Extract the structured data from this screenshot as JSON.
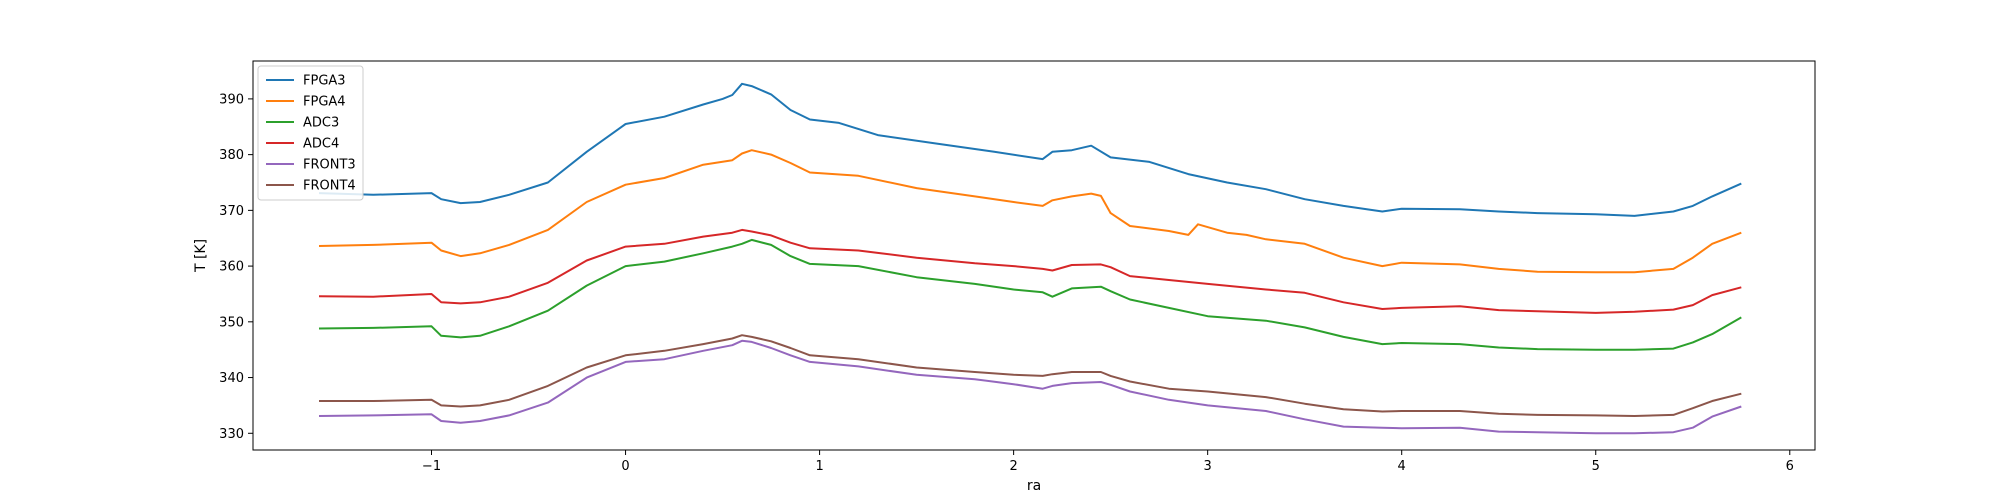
{
  "chart_data": {
    "type": "line",
    "xlabel": "ra",
    "ylabel": "T [K]",
    "xlim": [
      -1.92,
      6.13
    ],
    "ylim": [
      327.0,
      396.8
    ],
    "xticks": [
      -1,
      0,
      1,
      2,
      3,
      4,
      5,
      6
    ],
    "xtick_labels": [
      "−1",
      "0",
      "1",
      "2",
      "3",
      "4",
      "5",
      "6"
    ],
    "yticks": [
      330,
      340,
      350,
      360,
      370,
      380,
      390
    ],
    "ytick_labels": [
      "330",
      "340",
      "350",
      "360",
      "370",
      "380",
      "390"
    ],
    "grid": false,
    "legend_position": "upper-left",
    "series": [
      {
        "name": "FPGA3",
        "color": "#1f77b4",
        "x": [
          -1.58,
          -1.3,
          -1.0,
          -0.95,
          -0.85,
          -0.75,
          -0.6,
          -0.4,
          -0.2,
          0.0,
          0.2,
          0.4,
          0.5,
          0.55,
          0.6,
          0.65,
          0.75,
          0.85,
          0.95,
          1.1,
          1.3,
          1.6,
          1.9,
          2.15,
          2.2,
          2.3,
          2.4,
          2.5,
          2.7,
          2.9,
          3.1,
          3.3,
          3.5,
          3.7,
          3.9,
          4.0,
          4.3,
          4.5,
          4.7,
          5.0,
          5.2,
          5.4,
          5.5,
          5.6,
          5.75
        ],
        "y": [
          373.1,
          372.8,
          373.1,
          372.0,
          371.3,
          371.5,
          372.8,
          375.0,
          380.5,
          385.5,
          386.8,
          389.0,
          390.0,
          390.7,
          392.7,
          392.3,
          390.8,
          388.0,
          386.3,
          385.7,
          383.5,
          382.0,
          380.5,
          379.2,
          380.5,
          380.8,
          381.6,
          379.5,
          378.7,
          376.5,
          375.0,
          373.8,
          372.0,
          370.8,
          369.8,
          370.3,
          370.2,
          369.8,
          369.5,
          369.3,
          369.0,
          369.8,
          370.8,
          372.5,
          374.8
        ]
      },
      {
        "name": "FPGA4",
        "color": "#ff7f0e",
        "x": [
          -1.58,
          -1.3,
          -1.0,
          -0.95,
          -0.85,
          -0.75,
          -0.6,
          -0.4,
          -0.2,
          0.0,
          0.2,
          0.4,
          0.55,
          0.6,
          0.65,
          0.75,
          0.85,
          0.95,
          1.2,
          1.5,
          1.8,
          2.0,
          2.15,
          2.2,
          2.3,
          2.4,
          2.45,
          2.5,
          2.6,
          2.8,
          2.9,
          2.95,
          3.1,
          3.2,
          3.3,
          3.5,
          3.7,
          3.9,
          4.0,
          4.3,
          4.5,
          4.7,
          5.0,
          5.2,
          5.4,
          5.5,
          5.6,
          5.75
        ],
        "y": [
          363.6,
          363.8,
          364.2,
          362.8,
          361.8,
          362.3,
          363.8,
          366.5,
          371.5,
          374.6,
          375.8,
          378.2,
          379.0,
          380.2,
          380.8,
          380.0,
          378.5,
          376.8,
          376.2,
          374.0,
          372.5,
          371.5,
          370.8,
          371.8,
          372.5,
          373.0,
          372.6,
          369.5,
          367.2,
          366.3,
          365.6,
          367.5,
          366.0,
          365.6,
          364.8,
          364.0,
          361.5,
          360.0,
          360.6,
          360.3,
          359.5,
          359.0,
          358.9,
          358.9,
          359.5,
          361.5,
          364.0,
          366.0
        ]
      },
      {
        "name": "ADC3",
        "color": "#2ca02c",
        "x": [
          -1.58,
          -1.3,
          -1.0,
          -0.95,
          -0.85,
          -0.75,
          -0.6,
          -0.4,
          -0.2,
          0.0,
          0.2,
          0.4,
          0.55,
          0.6,
          0.65,
          0.75,
          0.85,
          0.95,
          1.2,
          1.5,
          1.8,
          2.0,
          2.15,
          2.2,
          2.3,
          2.45,
          2.5,
          2.6,
          2.8,
          3.0,
          3.3,
          3.5,
          3.7,
          3.9,
          4.0,
          4.3,
          4.5,
          4.7,
          5.0,
          5.2,
          5.4,
          5.5,
          5.6,
          5.75
        ],
        "y": [
          348.8,
          348.9,
          349.2,
          347.5,
          347.2,
          347.5,
          349.2,
          352.0,
          356.5,
          360.0,
          360.8,
          362.3,
          363.5,
          364.0,
          364.7,
          363.8,
          361.8,
          360.4,
          360.0,
          358.0,
          356.8,
          355.8,
          355.3,
          354.5,
          356.0,
          356.3,
          355.5,
          354.0,
          352.5,
          351.0,
          350.2,
          349.0,
          347.3,
          346.0,
          346.2,
          346.0,
          345.4,
          345.1,
          345.0,
          345.0,
          345.2,
          346.3,
          347.8,
          350.8
        ]
      },
      {
        "name": "ADC4",
        "color": "#d62728",
        "x": [
          -1.58,
          -1.3,
          -1.0,
          -0.95,
          -0.85,
          -0.75,
          -0.6,
          -0.4,
          -0.2,
          0.0,
          0.2,
          0.4,
          0.55,
          0.6,
          0.65,
          0.75,
          0.85,
          0.95,
          1.2,
          1.5,
          1.8,
          2.0,
          2.15,
          2.2,
          2.3,
          2.45,
          2.5,
          2.6,
          2.8,
          3.0,
          3.3,
          3.5,
          3.7,
          3.9,
          4.0,
          4.3,
          4.5,
          4.7,
          5.0,
          5.2,
          5.4,
          5.5,
          5.6,
          5.75
        ],
        "y": [
          354.6,
          354.5,
          355.0,
          353.5,
          353.3,
          353.5,
          354.5,
          357.0,
          361.0,
          363.5,
          364.0,
          365.3,
          366.0,
          366.5,
          366.2,
          365.5,
          364.2,
          363.2,
          362.8,
          361.5,
          360.5,
          360.0,
          359.5,
          359.2,
          360.2,
          360.3,
          359.8,
          358.2,
          357.5,
          356.8,
          355.8,
          355.2,
          353.5,
          352.3,
          352.5,
          352.8,
          352.1,
          351.9,
          351.6,
          351.8,
          352.2,
          353.0,
          354.8,
          356.2
        ]
      },
      {
        "name": "FRONT3",
        "color": "#9467bd",
        "x": [
          -1.58,
          -1.3,
          -1.0,
          -0.95,
          -0.85,
          -0.75,
          -0.6,
          -0.4,
          -0.2,
          0.0,
          0.2,
          0.4,
          0.55,
          0.6,
          0.65,
          0.75,
          0.85,
          0.95,
          1.2,
          1.5,
          1.8,
          2.0,
          2.15,
          2.2,
          2.3,
          2.45,
          2.5,
          2.6,
          2.8,
          3.0,
          3.3,
          3.5,
          3.7,
          3.9,
          4.0,
          4.3,
          4.5,
          4.7,
          5.0,
          5.2,
          5.4,
          5.5,
          5.6,
          5.75
        ],
        "y": [
          333.1,
          333.2,
          333.4,
          332.2,
          331.9,
          332.2,
          333.2,
          335.5,
          340.0,
          342.8,
          343.3,
          344.8,
          345.8,
          346.6,
          346.4,
          345.3,
          344.0,
          342.8,
          342.0,
          340.5,
          339.7,
          338.8,
          338.0,
          338.5,
          339.0,
          339.2,
          338.7,
          337.5,
          336.0,
          335.0,
          334.0,
          332.5,
          331.2,
          331.0,
          330.9,
          331.0,
          330.3,
          330.2,
          330.0,
          330.0,
          330.2,
          331.0,
          333.0,
          334.8
        ]
      },
      {
        "name": "FRONT4",
        "color": "#8c564b",
        "x": [
          -1.58,
          -1.3,
          -1.0,
          -0.95,
          -0.85,
          -0.75,
          -0.6,
          -0.4,
          -0.2,
          0.0,
          0.2,
          0.4,
          0.55,
          0.6,
          0.65,
          0.75,
          0.85,
          0.95,
          1.2,
          1.5,
          1.8,
          2.0,
          2.15,
          2.2,
          2.3,
          2.45,
          2.5,
          2.6,
          2.8,
          3.0,
          3.3,
          3.5,
          3.7,
          3.9,
          4.0,
          4.3,
          4.5,
          4.7,
          5.0,
          5.2,
          5.4,
          5.5,
          5.6,
          5.75
        ],
        "y": [
          335.8,
          335.8,
          336.0,
          335.0,
          334.8,
          335.0,
          336.0,
          338.5,
          341.8,
          344.0,
          344.8,
          346.0,
          347.0,
          347.6,
          347.3,
          346.5,
          345.3,
          344.0,
          343.3,
          341.8,
          341.0,
          340.5,
          340.3,
          340.6,
          341.0,
          341.0,
          340.3,
          339.3,
          338.0,
          337.5,
          336.5,
          335.3,
          334.3,
          333.9,
          334.0,
          334.0,
          333.5,
          333.3,
          333.2,
          333.1,
          333.3,
          334.5,
          335.8,
          337.1
        ]
      }
    ]
  }
}
